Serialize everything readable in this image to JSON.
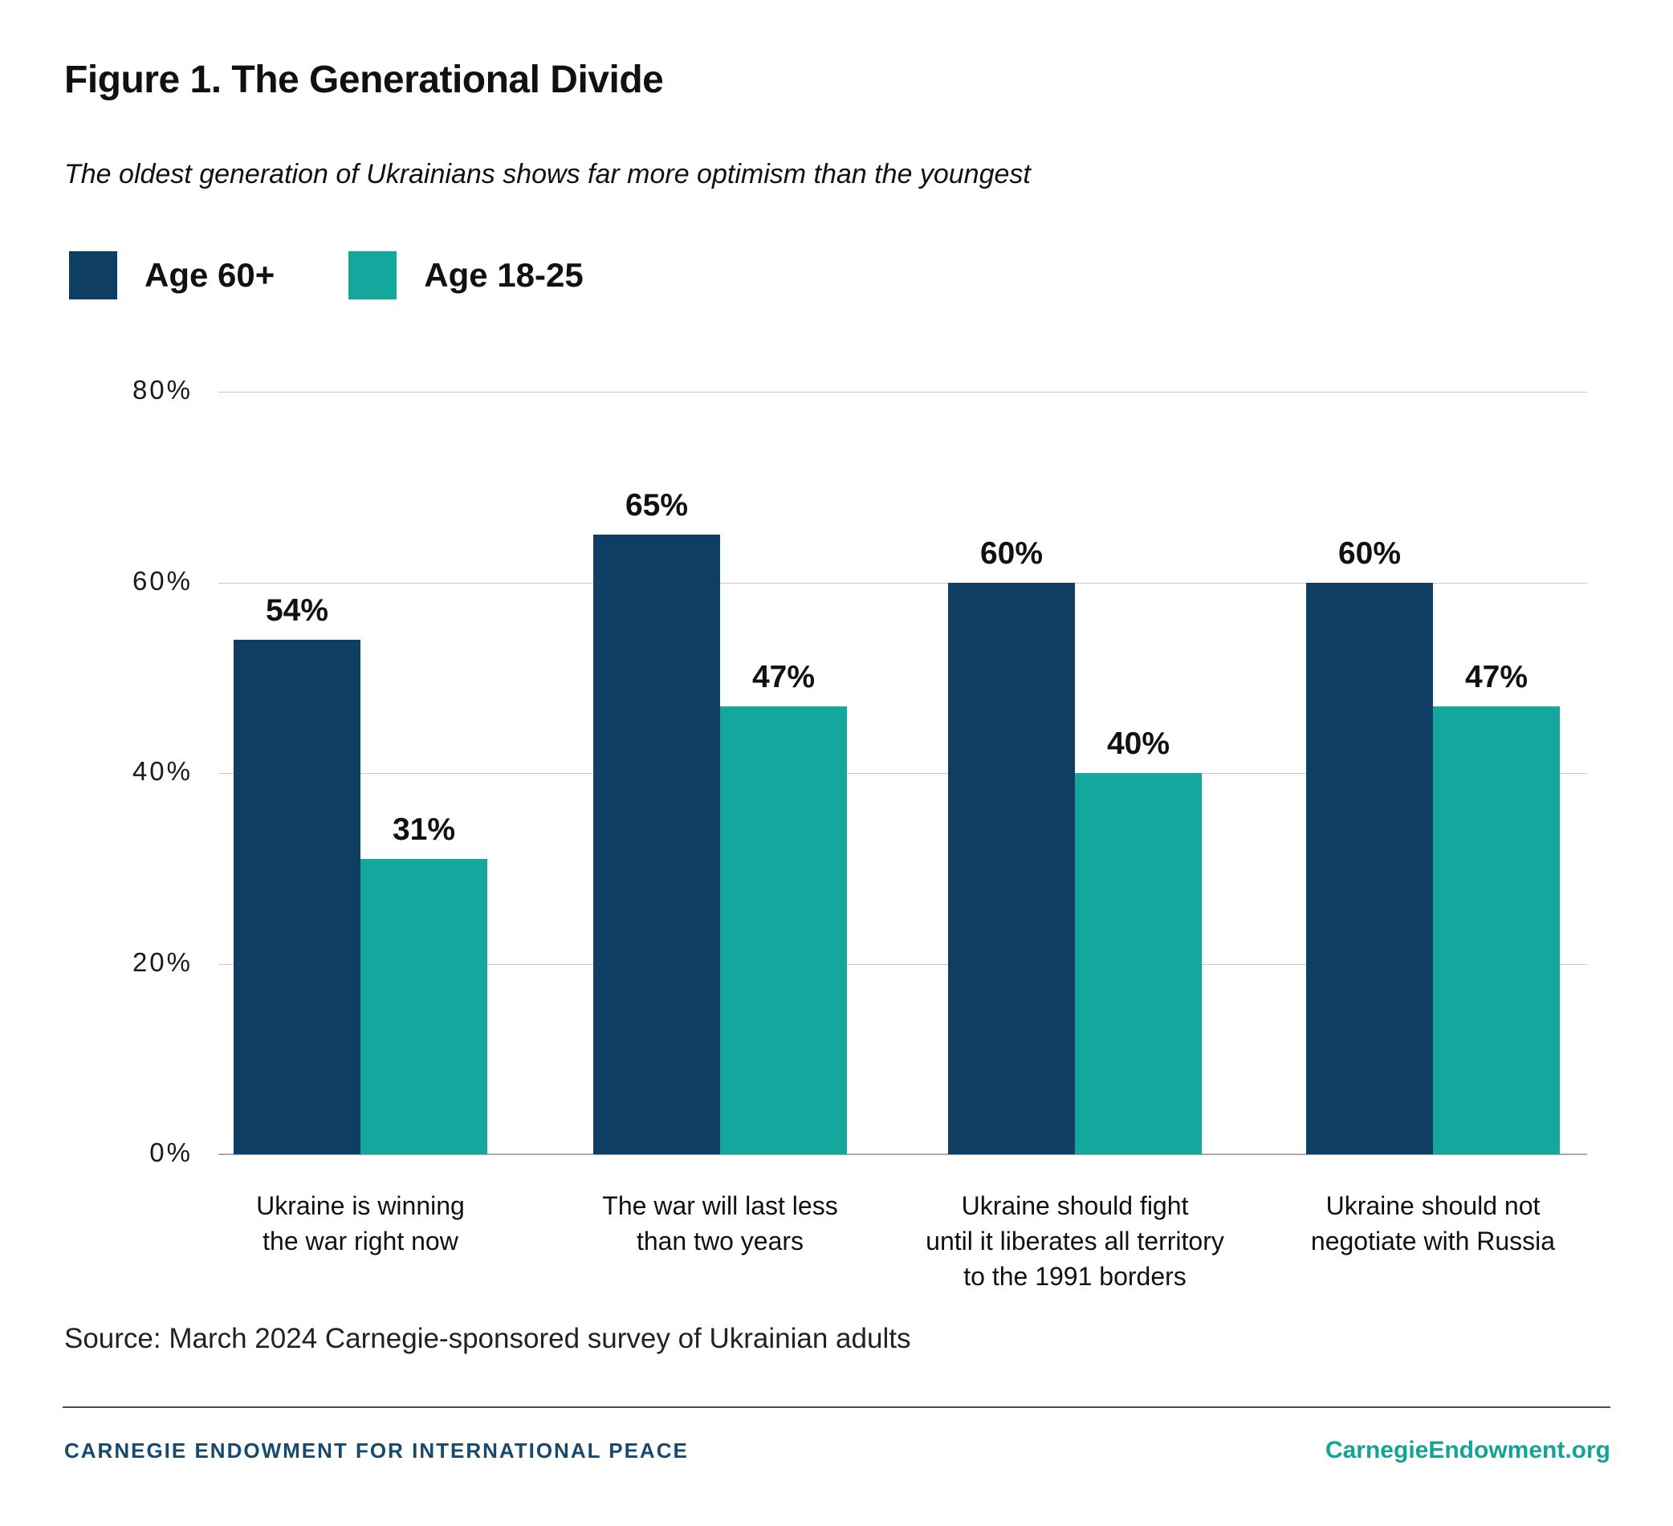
{
  "header": {
    "title": "Figure 1. The Generational Divide",
    "subtitle": "The oldest generation of Ukrainians shows far more optimism than the youngest"
  },
  "chart_data": {
    "type": "bar",
    "title": "Figure 1. The Generational Divide",
    "categories": [
      "Ukraine is winning\nthe war right now",
      "The war will last less\nthan two years",
      "Ukraine should fight\nuntil it liberates all territory\nto the 1991 borders",
      "Ukraine should not\nnegotiate with Russia"
    ],
    "series": [
      {
        "name": "Age 60+",
        "color": "#0e3e64",
        "values": [
          54,
          65,
          60,
          60
        ]
      },
      {
        "name": "Age 18-25",
        "color": "#14a79e",
        "values": [
          31,
          47,
          40,
          47
        ]
      }
    ],
    "value_labels": [
      [
        "54%",
        "65%",
        "60%",
        "60%"
      ],
      [
        "31%",
        "47%",
        "40%",
        "47%"
      ]
    ],
    "ylim": [
      0,
      80
    ],
    "yticks": [
      0,
      20,
      40,
      60,
      80
    ],
    "ytick_labels": [
      "0%",
      "20%",
      "40%",
      "60%",
      "80%"
    ],
    "grid": true,
    "legend_position": "top-left",
    "gridline_color": "#c9c9c9"
  },
  "source": "Source: March 2024 Carnegie-sponsored survey of Ukrainian adults",
  "footer": {
    "left": "CARNEGIE ENDOWMENT FOR INTERNATIONAL PEACE",
    "right": "CarnegieEndowment.org"
  }
}
